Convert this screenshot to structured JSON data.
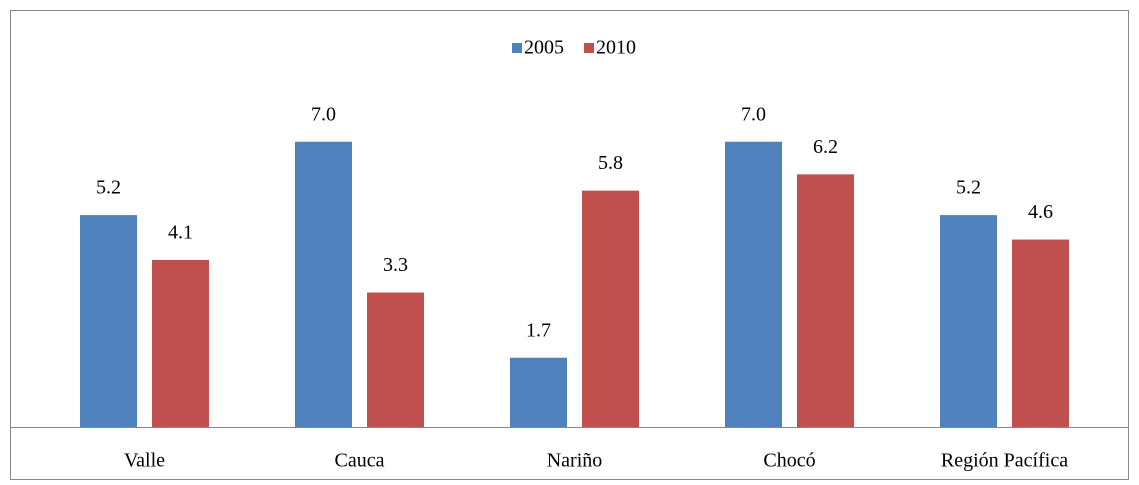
{
  "chart_data": {
    "type": "bar",
    "categories": [
      "Valle",
      "Cauca",
      "Nariño",
      "Chocó",
      "Región Pacífica"
    ],
    "series": [
      {
        "name": "2005",
        "color": "#4f81bd",
        "values": [
          5.2,
          7.0,
          1.7,
          7.0,
          5.2
        ],
        "value_labels": [
          "5.2",
          "7.0",
          "1.7",
          "7.0",
          "5.2"
        ]
      },
      {
        "name": "2010",
        "color": "#c0504d",
        "values": [
          4.1,
          3.3,
          5.8,
          6.2,
          4.6
        ],
        "value_labels": [
          "4.1",
          "3.3",
          "5.8",
          "6.2",
          "4.6"
        ]
      }
    ],
    "ylim": [
      0,
      8
    ],
    "legend": "top"
  }
}
